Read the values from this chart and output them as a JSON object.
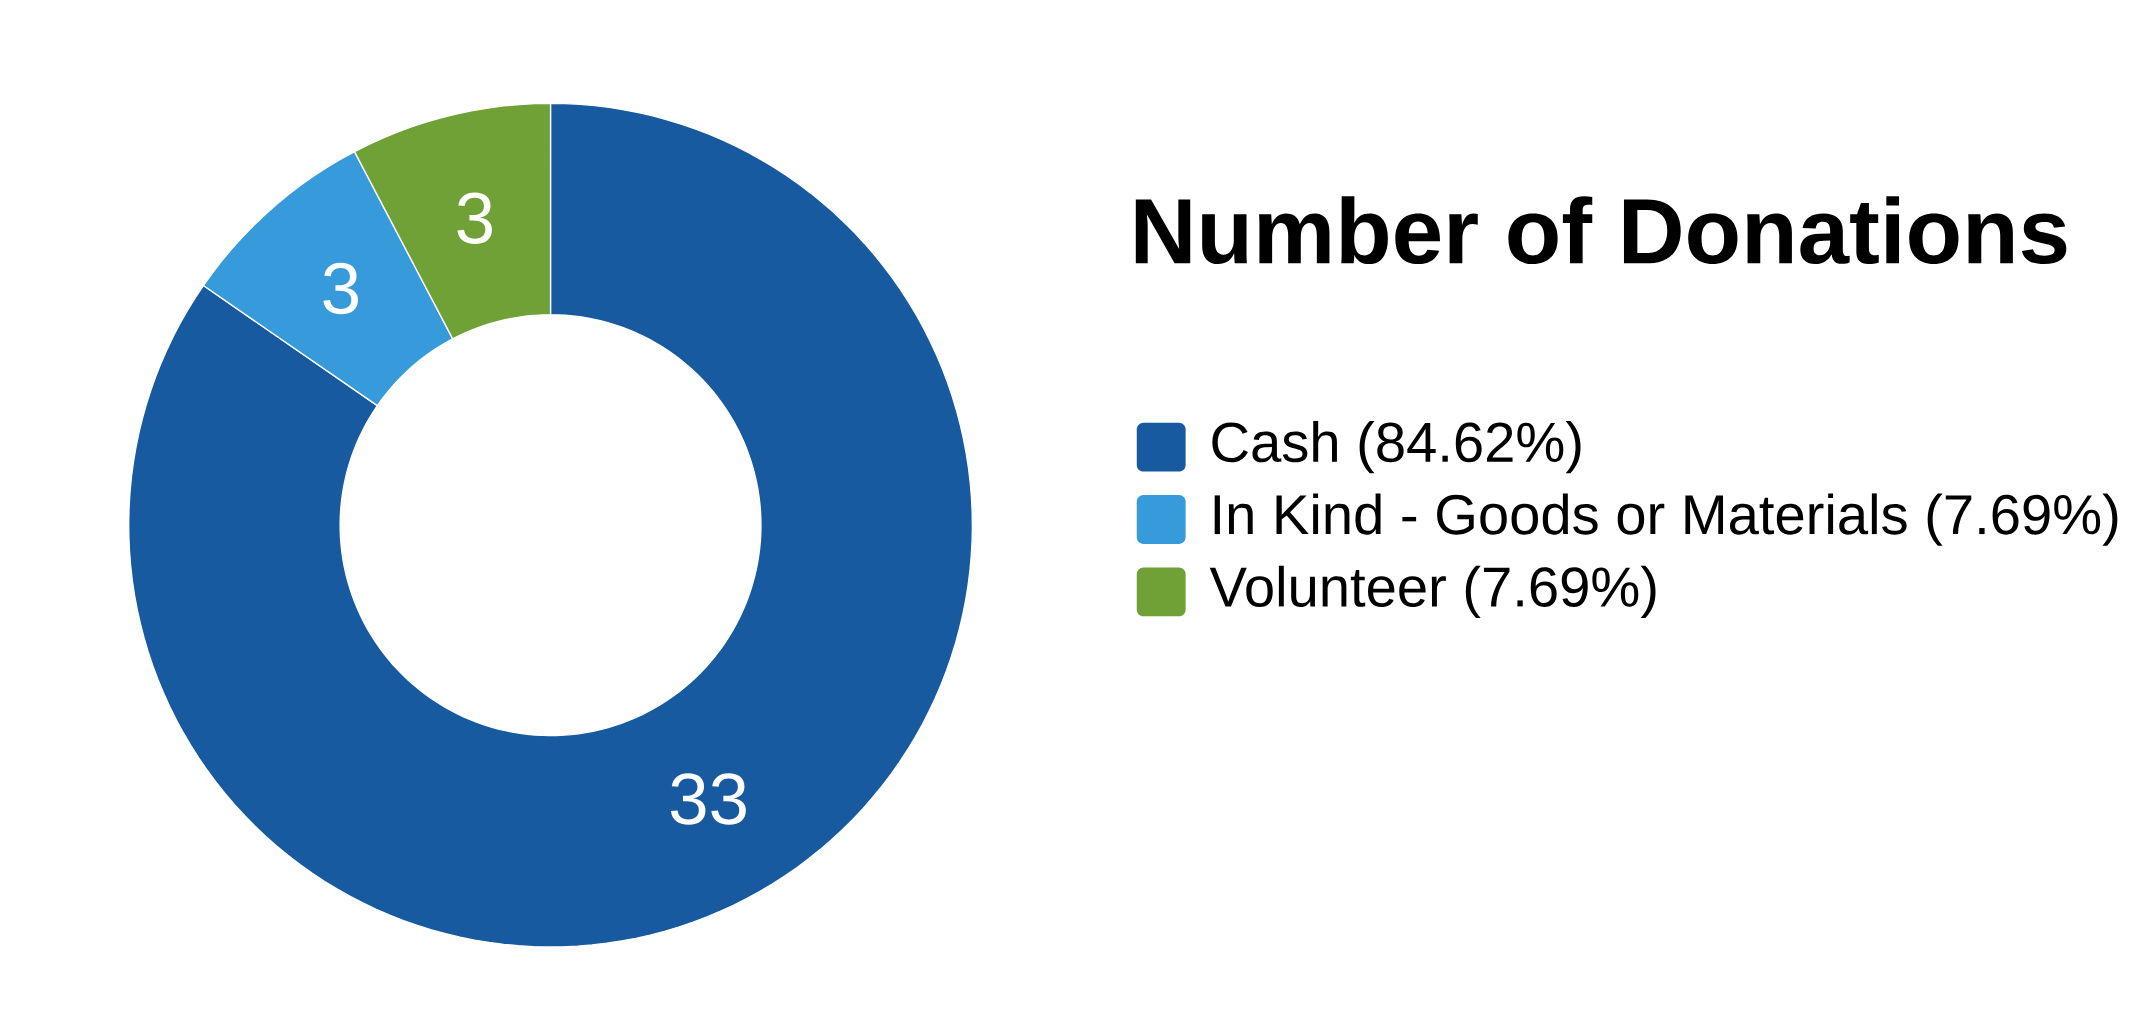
{
  "chart_data": {
    "type": "donut",
    "title": "Number of Donations",
    "categories": [
      "Cash (84.62%)",
      "In Kind - Goods or Materials (7.69%)",
      "Volunteer (7.69%)"
    ],
    "values": [
      33,
      3,
      3
    ],
    "colors": [
      "#175aa0",
      "#379bdb",
      "#6fa136"
    ],
    "data_labels": true,
    "legend": "right"
  }
}
